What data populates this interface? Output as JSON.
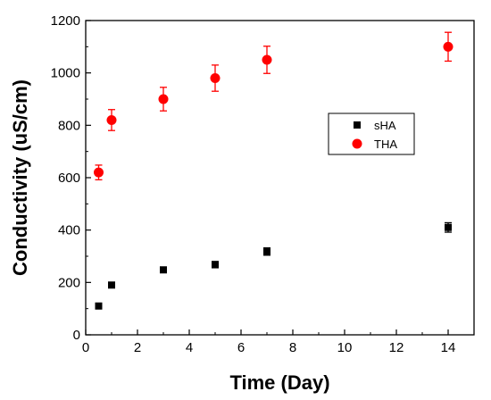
{
  "chart_data": {
    "type": "scatter",
    "xlabel": "Time (Day)",
    "ylabel": "Conductivity (uS/cm)",
    "xlim": [
      0,
      15
    ],
    "ylim": [
      0,
      1200
    ],
    "xticks": [
      0,
      2,
      4,
      6,
      8,
      10,
      12,
      14
    ],
    "yticks": [
      0,
      200,
      400,
      600,
      800,
      1000,
      1200
    ],
    "grid": false,
    "legend_position": "right-middle",
    "series": [
      {
        "name": "sHA",
        "marker": "square",
        "color": "#000000",
        "points": [
          {
            "x": 0.5,
            "y": 110,
            "err": 8
          },
          {
            "x": 1,
            "y": 190,
            "err": 10
          },
          {
            "x": 3,
            "y": 248,
            "err": 10
          },
          {
            "x": 5,
            "y": 268,
            "err": 12
          },
          {
            "x": 7,
            "y": 318,
            "err": 14
          },
          {
            "x": 14,
            "y": 410,
            "err": 18
          }
        ]
      },
      {
        "name": "THA",
        "marker": "circle",
        "color": "#ff0000",
        "points": [
          {
            "x": 0.5,
            "y": 620,
            "err": 28
          },
          {
            "x": 1,
            "y": 820,
            "err": 40
          },
          {
            "x": 3,
            "y": 900,
            "err": 45
          },
          {
            "x": 5,
            "y": 980,
            "err": 50
          },
          {
            "x": 7,
            "y": 1050,
            "err": 52
          },
          {
            "x": 14,
            "y": 1100,
            "err": 55
          }
        ]
      }
    ]
  }
}
